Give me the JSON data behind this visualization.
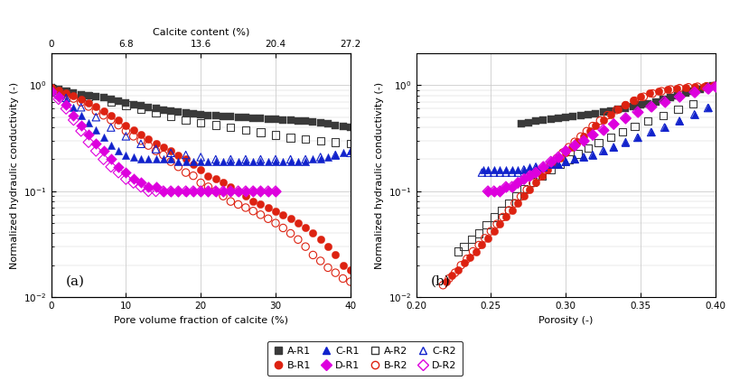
{
  "panel_a": {
    "xlabel": "Pore volume fraction of calcite (%)",
    "xlabel2": "Calcite content (%)",
    "ylabel": "Normalized hydraulic conductivity (-)",
    "xlim": [
      0,
      40
    ],
    "xlim2": [
      0,
      27.2
    ],
    "ylim": [
      0.01,
      2.0
    ],
    "xticks": [
      0,
      10,
      20,
      30,
      40
    ],
    "xticks2": [
      0,
      6.8,
      13.6,
      20.4,
      27.2
    ],
    "label": "(a)",
    "AR1_x": [
      0,
      1,
      2,
      3,
      4,
      5,
      6,
      7,
      8,
      9,
      10,
      11,
      12,
      13,
      14,
      15,
      16,
      17,
      18,
      19,
      20,
      21,
      22,
      23,
      24,
      25,
      26,
      27,
      28,
      29,
      30,
      31,
      32,
      33,
      34,
      35,
      36,
      37,
      38,
      39,
      40
    ],
    "AR1_y": [
      0.95,
      0.92,
      0.88,
      0.85,
      0.82,
      0.8,
      0.78,
      0.76,
      0.73,
      0.71,
      0.68,
      0.66,
      0.64,
      0.62,
      0.6,
      0.58,
      0.57,
      0.56,
      0.55,
      0.54,
      0.53,
      0.52,
      0.52,
      0.51,
      0.51,
      0.5,
      0.5,
      0.49,
      0.49,
      0.48,
      0.48,
      0.47,
      0.47,
      0.46,
      0.46,
      0.45,
      0.44,
      0.43,
      0.42,
      0.41,
      0.4
    ],
    "AR2_x": [
      2,
      5,
      8,
      10,
      12,
      14,
      16,
      18,
      20,
      22,
      24,
      26,
      28,
      30,
      32,
      34,
      36,
      38,
      40
    ],
    "AR2_y": [
      0.88,
      0.79,
      0.7,
      0.65,
      0.6,
      0.55,
      0.51,
      0.47,
      0.44,
      0.42,
      0.4,
      0.38,
      0.36,
      0.34,
      0.32,
      0.31,
      0.3,
      0.29,
      0.28
    ],
    "BR1_x": [
      0,
      1,
      2,
      3,
      4,
      5,
      6,
      7,
      8,
      9,
      10,
      11,
      12,
      13,
      14,
      15,
      16,
      17,
      18,
      19,
      20,
      21,
      22,
      23,
      24,
      25,
      26,
      27,
      28,
      29,
      30,
      31,
      32,
      33,
      34,
      35,
      36,
      37,
      38,
      39,
      40
    ],
    "BR1_y": [
      0.95,
      0.9,
      0.85,
      0.8,
      0.74,
      0.68,
      0.63,
      0.57,
      0.52,
      0.47,
      0.42,
      0.38,
      0.34,
      0.31,
      0.28,
      0.26,
      0.24,
      0.22,
      0.2,
      0.18,
      0.16,
      0.14,
      0.13,
      0.12,
      0.11,
      0.1,
      0.09,
      0.08,
      0.075,
      0.07,
      0.065,
      0.06,
      0.055,
      0.05,
      0.045,
      0.04,
      0.035,
      0.03,
      0.025,
      0.02,
      0.018
    ],
    "BR2_x": [
      0,
      1,
      2,
      3,
      4,
      5,
      6,
      7,
      8,
      9,
      10,
      11,
      12,
      13,
      14,
      15,
      16,
      17,
      18,
      19,
      20,
      21,
      22,
      23,
      24,
      25,
      26,
      27,
      28,
      29,
      30,
      31,
      32,
      33,
      34,
      35,
      36,
      37,
      38,
      39,
      40
    ],
    "BR2_y": [
      0.93,
      0.87,
      0.81,
      0.75,
      0.69,
      0.63,
      0.57,
      0.52,
      0.47,
      0.42,
      0.37,
      0.33,
      0.3,
      0.27,
      0.24,
      0.22,
      0.19,
      0.17,
      0.15,
      0.14,
      0.12,
      0.11,
      0.1,
      0.09,
      0.08,
      0.075,
      0.07,
      0.065,
      0.06,
      0.055,
      0.05,
      0.045,
      0.04,
      0.035,
      0.03,
      0.025,
      0.022,
      0.019,
      0.017,
      0.015,
      0.014
    ],
    "CR1_x": [
      0,
      1,
      2,
      3,
      4,
      5,
      6,
      7,
      8,
      9,
      10,
      11,
      12,
      13,
      14,
      15,
      16,
      17,
      18,
      19,
      20,
      21,
      22,
      23,
      24,
      25,
      26,
      27,
      28,
      29,
      30,
      31,
      32,
      33,
      34,
      35,
      36,
      37,
      38,
      39,
      40
    ],
    "CR1_y": [
      0.9,
      0.82,
      0.72,
      0.62,
      0.52,
      0.44,
      0.38,
      0.32,
      0.27,
      0.24,
      0.22,
      0.21,
      0.2,
      0.2,
      0.2,
      0.2,
      0.2,
      0.19,
      0.19,
      0.19,
      0.19,
      0.19,
      0.19,
      0.19,
      0.19,
      0.19,
      0.19,
      0.19,
      0.19,
      0.19,
      0.19,
      0.19,
      0.19,
      0.19,
      0.19,
      0.2,
      0.2,
      0.21,
      0.22,
      0.23,
      0.24
    ],
    "CR2_x": [
      0,
      2,
      4,
      6,
      8,
      10,
      12,
      14,
      16,
      18,
      20,
      22,
      24,
      26,
      28,
      30,
      32,
      34,
      36,
      38,
      40
    ],
    "CR2_y": [
      0.88,
      0.76,
      0.62,
      0.5,
      0.4,
      0.33,
      0.28,
      0.25,
      0.23,
      0.22,
      0.21,
      0.2,
      0.2,
      0.2,
      0.2,
      0.2,
      0.2,
      0.2,
      0.21,
      0.22,
      0.23
    ],
    "DR1_x": [
      0,
      1,
      2,
      3,
      4,
      5,
      6,
      7,
      8,
      9,
      10,
      11,
      12,
      13,
      14,
      15,
      16,
      17,
      18,
      19,
      20,
      21,
      22,
      23,
      24,
      25,
      26,
      27,
      28,
      29,
      30
    ],
    "DR1_y": [
      0.88,
      0.78,
      0.65,
      0.52,
      0.42,
      0.34,
      0.28,
      0.24,
      0.2,
      0.17,
      0.15,
      0.13,
      0.12,
      0.11,
      0.11,
      0.1,
      0.1,
      0.1,
      0.1,
      0.1,
      0.1,
      0.1,
      0.1,
      0.1,
      0.1,
      0.1,
      0.1,
      0.1,
      0.1,
      0.1,
      0.1
    ],
    "DR2_x": [
      0,
      1,
      2,
      3,
      4,
      5,
      6,
      7,
      8,
      9,
      10,
      11,
      12,
      13,
      14,
      15,
      16,
      17,
      18,
      19,
      20,
      21,
      22,
      23,
      24,
      25,
      26,
      27,
      28,
      29,
      30
    ],
    "DR2_y": [
      0.85,
      0.74,
      0.6,
      0.47,
      0.37,
      0.29,
      0.24,
      0.2,
      0.17,
      0.15,
      0.13,
      0.12,
      0.11,
      0.1,
      0.1,
      0.1,
      0.1,
      0.1,
      0.1,
      0.1,
      0.1,
      0.1,
      0.1,
      0.1,
      0.1,
      0.1,
      0.1,
      0.1,
      0.1,
      0.1,
      0.1
    ]
  },
  "panel_b": {
    "xlabel": "Porosity (-)",
    "ylabel": "Normalized hydraulic conductivity (-)",
    "xlim": [
      0.2,
      0.4
    ],
    "ylim": [
      0.01,
      2.0
    ],
    "xticks": [
      0.2,
      0.25,
      0.3,
      0.35,
      0.4
    ],
    "label": "(b)",
    "AR1_x": [
      0.27,
      0.275,
      0.28,
      0.285,
      0.29,
      0.295,
      0.3,
      0.305,
      0.31,
      0.315,
      0.32,
      0.325,
      0.33,
      0.335,
      0.34,
      0.345,
      0.35,
      0.355,
      0.36,
      0.365,
      0.37,
      0.375,
      0.38,
      0.385,
      0.39,
      0.395,
      0.398
    ],
    "AR1_y": [
      0.43,
      0.44,
      0.46,
      0.47,
      0.48,
      0.49,
      0.5,
      0.51,
      0.52,
      0.53,
      0.54,
      0.56,
      0.57,
      0.59,
      0.61,
      0.63,
      0.65,
      0.67,
      0.7,
      0.73,
      0.76,
      0.8,
      0.84,
      0.88,
      0.92,
      0.96,
      0.98
    ],
    "AR2_x": [
      0.228,
      0.232,
      0.237,
      0.242,
      0.247,
      0.252,
      0.257,
      0.262,
      0.267,
      0.272,
      0.278,
      0.284,
      0.29,
      0.296,
      0.302,
      0.308,
      0.315,
      0.322,
      0.33,
      0.338,
      0.346,
      0.355,
      0.365,
      0.375,
      0.385
    ],
    "AR2_y": [
      0.027,
      0.03,
      0.035,
      0.04,
      0.048,
      0.057,
      0.066,
      0.077,
      0.09,
      0.105,
      0.122,
      0.14,
      0.16,
      0.18,
      0.2,
      0.225,
      0.255,
      0.288,
      0.325,
      0.365,
      0.41,
      0.46,
      0.52,
      0.59,
      0.67
    ],
    "BR1_x": [
      0.22,
      0.224,
      0.228,
      0.232,
      0.236,
      0.24,
      0.244,
      0.248,
      0.252,
      0.256,
      0.26,
      0.264,
      0.268,
      0.272,
      0.276,
      0.28,
      0.284,
      0.288,
      0.292,
      0.296,
      0.3,
      0.304,
      0.308,
      0.312,
      0.316,
      0.32,
      0.325,
      0.33,
      0.335,
      0.34,
      0.345,
      0.35,
      0.356,
      0.362,
      0.368,
      0.374,
      0.38,
      0.386,
      0.392,
      0.398
    ],
    "BR1_y": [
      0.014,
      0.016,
      0.018,
      0.021,
      0.024,
      0.027,
      0.031,
      0.036,
      0.042,
      0.049,
      0.057,
      0.066,
      0.077,
      0.09,
      0.104,
      0.12,
      0.138,
      0.158,
      0.18,
      0.205,
      0.232,
      0.262,
      0.295,
      0.332,
      0.372,
      0.416,
      0.47,
      0.528,
      0.59,
      0.655,
      0.72,
      0.785,
      0.84,
      0.88,
      0.912,
      0.936,
      0.952,
      0.965,
      0.975,
      0.982
    ],
    "BR2_x": [
      0.218,
      0.222,
      0.226,
      0.23,
      0.234,
      0.238,
      0.242,
      0.246,
      0.25,
      0.254,
      0.258,
      0.262,
      0.266,
      0.27,
      0.274,
      0.278,
      0.282,
      0.286,
      0.29,
      0.294,
      0.298,
      0.302,
      0.306,
      0.31,
      0.314,
      0.318,
      0.323,
      0.328,
      0.334,
      0.34,
      0.346,
      0.352,
      0.358,
      0.364,
      0.37,
      0.376,
      0.382,
      0.388,
      0.394,
      0.399
    ],
    "BR2_y": [
      0.013,
      0.015,
      0.017,
      0.02,
      0.023,
      0.027,
      0.031,
      0.036,
      0.042,
      0.049,
      0.057,
      0.066,
      0.077,
      0.089,
      0.103,
      0.119,
      0.137,
      0.157,
      0.179,
      0.204,
      0.231,
      0.26,
      0.292,
      0.328,
      0.368,
      0.412,
      0.464,
      0.522,
      0.584,
      0.648,
      0.714,
      0.778,
      0.835,
      0.878,
      0.912,
      0.938,
      0.956,
      0.968,
      0.977,
      0.984
    ],
    "CR1_x": [
      0.245,
      0.248,
      0.252,
      0.256,
      0.26,
      0.264,
      0.268,
      0.272,
      0.276,
      0.28,
      0.285,
      0.29,
      0.295,
      0.3,
      0.306,
      0.312,
      0.318,
      0.325,
      0.332,
      0.34,
      0.348,
      0.357,
      0.366,
      0.376,
      0.386,
      0.395
    ],
    "CR1_y": [
      0.16,
      0.16,
      0.16,
      0.16,
      0.16,
      0.16,
      0.16,
      0.16,
      0.17,
      0.17,
      0.17,
      0.18,
      0.18,
      0.19,
      0.2,
      0.21,
      0.22,
      0.24,
      0.26,
      0.29,
      0.32,
      0.36,
      0.4,
      0.46,
      0.53,
      0.62
    ],
    "CR2_x": [
      0.244,
      0.248,
      0.252,
      0.256,
      0.26,
      0.264,
      0.268,
      0.272,
      0.276,
      0.28,
      0.285,
      0.29,
      0.295,
      0.3,
      0.306,
      0.312,
      0.318,
      0.325,
      0.332,
      0.34,
      0.348,
      0.357,
      0.366,
      0.376,
      0.386,
      0.395
    ],
    "CR2_y": [
      0.15,
      0.15,
      0.15,
      0.15,
      0.15,
      0.15,
      0.15,
      0.16,
      0.16,
      0.17,
      0.17,
      0.18,
      0.18,
      0.19,
      0.2,
      0.21,
      0.22,
      0.24,
      0.26,
      0.29,
      0.32,
      0.36,
      0.4,
      0.46,
      0.53,
      0.61
    ],
    "DR1_x": [
      0.248,
      0.252,
      0.256,
      0.26,
      0.264,
      0.268,
      0.272,
      0.276,
      0.28,
      0.285,
      0.29,
      0.295,
      0.3,
      0.306,
      0.312,
      0.318,
      0.325,
      0.332,
      0.34,
      0.348,
      0.357,
      0.366,
      0.376,
      0.386,
      0.395,
      0.4
    ],
    "DR1_y": [
      0.1,
      0.1,
      0.1,
      0.11,
      0.11,
      0.12,
      0.13,
      0.14,
      0.15,
      0.17,
      0.19,
      0.21,
      0.24,
      0.27,
      0.3,
      0.34,
      0.38,
      0.43,
      0.49,
      0.56,
      0.63,
      0.7,
      0.78,
      0.86,
      0.93,
      0.97
    ],
    "DR2_x": [
      0.248,
      0.252,
      0.256,
      0.26,
      0.264,
      0.268,
      0.272,
      0.276,
      0.28,
      0.285,
      0.29,
      0.295,
      0.3,
      0.306,
      0.312,
      0.318,
      0.325,
      0.332,
      0.34,
      0.348,
      0.357,
      0.366,
      0.376,
      0.386,
      0.395,
      0.4
    ],
    "DR2_y": [
      0.1,
      0.1,
      0.1,
      0.11,
      0.11,
      0.12,
      0.13,
      0.14,
      0.15,
      0.17,
      0.19,
      0.21,
      0.24,
      0.27,
      0.3,
      0.34,
      0.38,
      0.43,
      0.49,
      0.56,
      0.63,
      0.7,
      0.78,
      0.86,
      0.93,
      0.97
    ]
  },
  "colors": {
    "A": "#3a3a3a",
    "B": "#dd2211",
    "C": "#1122cc",
    "D": "#dd00dd"
  },
  "grid_color": "#cccccc",
  "background_color": "#ffffff"
}
